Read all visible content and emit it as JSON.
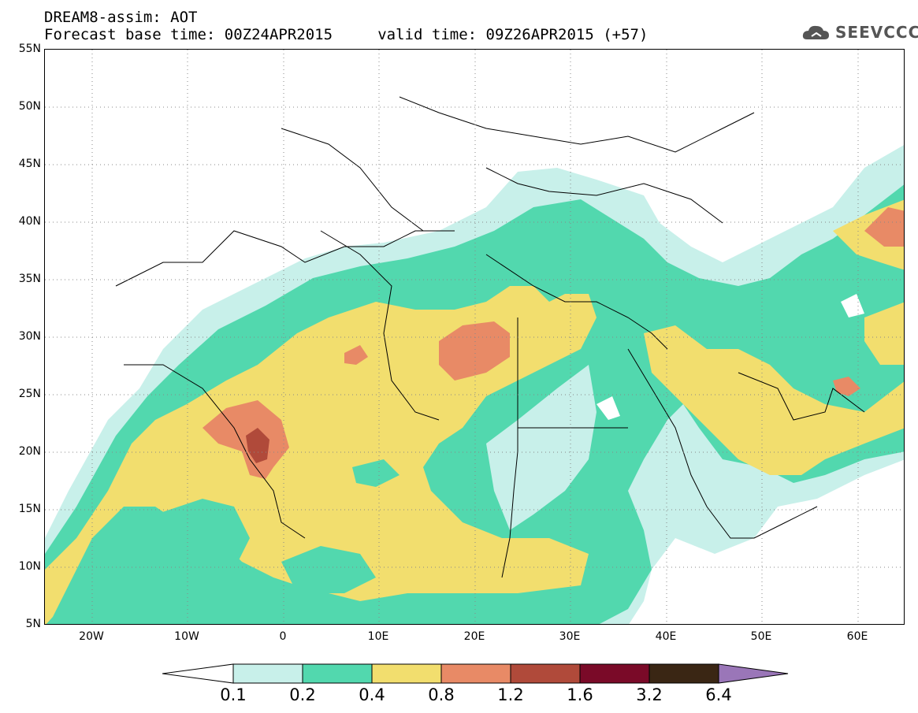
{
  "header": {
    "title": "DREAM8-assim: AOT",
    "base_time": "Forecast base time: 00Z24APR2015     valid time: 09Z26APR2015 (+57)"
  },
  "logo": {
    "text": "SEEVCCC",
    "icon": "cloud-icon"
  },
  "map": {
    "lat_labels": [
      "55N",
      "50N",
      "45N",
      "40N",
      "35N",
      "30N",
      "25N",
      "20N",
      "15N",
      "10N",
      "5N"
    ],
    "lon_labels": [
      "20W",
      "10W",
      "0",
      "10E",
      "20E",
      "30E",
      "40E",
      "50E",
      "60E"
    ],
    "grid": "dotted"
  },
  "legend": {
    "levels": [
      "0.1",
      "0.2",
      "0.4",
      "0.8",
      "1.2",
      "1.6",
      "3.2",
      "6.4"
    ],
    "colors": [
      "#c8f0ea",
      "#52d8ae",
      "#f2de6e",
      "#e88a66",
      "#b04a3a",
      "#7a0a28",
      "#3a2614",
      "#9a76b8"
    ]
  }
}
